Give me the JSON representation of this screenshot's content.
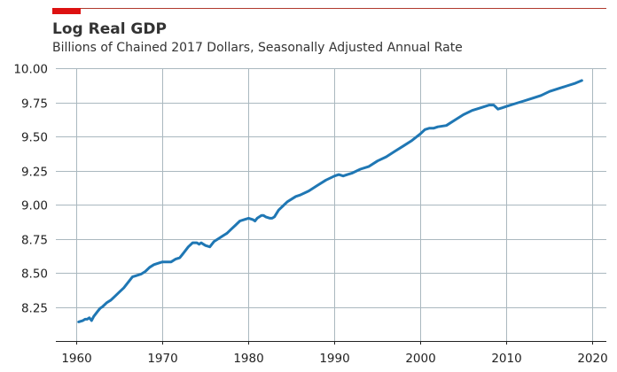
{
  "chart_data": {
    "type": "line",
    "title": "Log Real GDP",
    "subtitle": "Billions of Chained 2017 Dollars, Seasonally Adjusted Annual Rate",
    "xlabel": "",
    "ylabel": "",
    "xlim": [
      1957.6,
      2021.6
    ],
    "ylim": [
      8.0,
      10.0
    ],
    "x_ticks": [
      1960,
      1970,
      1980,
      1990,
      2000,
      2010,
      2020
    ],
    "y_ticks": [
      8.25,
      8.5,
      8.75,
      9.0,
      9.25,
      9.5,
      9.75,
      10.0
    ],
    "grid": true,
    "colors": {
      "line": "#1f77b4",
      "accent_bar": "#dd1111",
      "top_rule": "#b03a2e",
      "grid": "#aab8bf"
    },
    "series": [
      {
        "x": [
          1960.25,
          1960.75,
          1961.0,
          1961.25,
          1961.5,
          1961.75,
          1962.0,
          1962.25,
          1962.5,
          1962.75,
          1963.0,
          1963.5,
          1964.0,
          1964.5,
          1965.0,
          1965.5,
          1966.0,
          1966.5,
          1967.0,
          1967.5,
          1968.0,
          1968.5,
          1969.0,
          1969.5,
          1970.0,
          1970.5,
          1971.0,
          1971.5,
          1972.0,
          1972.25,
          1972.5,
          1973.0,
          1973.5,
          1974.0,
          1974.25,
          1974.5,
          1974.75,
          1975.0,
          1975.5,
          1976.0,
          1976.5,
          1977.0,
          1977.5,
          1978.0,
          1978.5,
          1979.0,
          1979.5,
          1980.0,
          1980.5,
          1980.75,
          1981.0,
          1981.5,
          1981.75,
          1982.0,
          1982.5,
          1982.75,
          1983.0,
          1983.5,
          1984.0,
          1984.5,
          1985.0,
          1985.5,
          1986.0,
          1987.0,
          1988.0,
          1989.0,
          1990.0,
          1990.5,
          1991.0,
          1991.5,
          1992.0,
          1993.0,
          1994.0,
          1995.0,
          1996.0,
          1997.0,
          1998.0,
          1999.0,
          2000.0,
          2000.5,
          2001.0,
          2001.5,
          2002.0,
          2003.0,
          2004.0,
          2005.0,
          2006.0,
          2007.0,
          2008.0,
          2008.5,
          2009.0,
          2009.5,
          2010.0,
          2011.0,
          2012.0,
          2013.0,
          2014.0,
          2015.0,
          2016.0,
          2017.0,
          2018.0,
          2018.75
        ],
        "values": [
          8.14,
          8.15,
          8.16,
          8.16,
          8.17,
          8.15,
          8.18,
          8.2,
          8.22,
          8.24,
          8.25,
          8.28,
          8.3,
          8.33,
          8.36,
          8.39,
          8.43,
          8.47,
          8.48,
          8.49,
          8.51,
          8.54,
          8.56,
          8.57,
          8.58,
          8.58,
          8.58,
          8.6,
          8.61,
          8.63,
          8.65,
          8.69,
          8.72,
          8.72,
          8.71,
          8.72,
          8.71,
          8.7,
          8.69,
          8.73,
          8.75,
          8.77,
          8.79,
          8.82,
          8.85,
          8.88,
          8.89,
          8.9,
          8.89,
          8.88,
          8.9,
          8.92,
          8.92,
          8.91,
          8.9,
          8.9,
          8.91,
          8.96,
          8.99,
          9.02,
          9.04,
          9.06,
          9.07,
          9.1,
          9.14,
          9.18,
          9.21,
          9.22,
          9.21,
          9.22,
          9.23,
          9.26,
          9.28,
          9.32,
          9.35,
          9.39,
          9.43,
          9.47,
          9.52,
          9.55,
          9.56,
          9.56,
          9.57,
          9.58,
          9.62,
          9.66,
          9.69,
          9.71,
          9.73,
          9.73,
          9.7,
          9.71,
          9.72,
          9.74,
          9.76,
          9.78,
          9.8,
          9.83,
          9.85,
          9.87,
          9.89,
          9.91
        ]
      }
    ]
  }
}
